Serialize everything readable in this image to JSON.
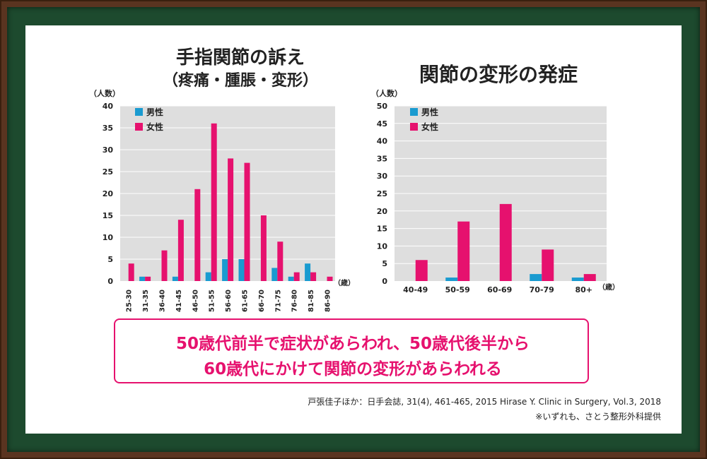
{
  "titles": {
    "left_line1": "手指関節の訴え",
    "left_line2": "（疼痛・腫脹・変形）",
    "right": "関節の変形の発症"
  },
  "colors": {
    "male": "#1a9bd0",
    "female": "#e6116e",
    "plot_bg": "#dedede",
    "grid": "#ffffff"
  },
  "chart_data": [
    {
      "type": "bar",
      "title": "手指関節の訴え（疼痛・腫脹・変形）",
      "ylabel": "（人数）",
      "xunit": "（歳）",
      "ylim": [
        0,
        40
      ],
      "yticks": [
        0,
        5,
        10,
        15,
        20,
        25,
        30,
        35,
        40
      ],
      "categories": [
        "25-30",
        "31-35",
        "36-40",
        "41-45",
        "46-50",
        "51-55",
        "56-60",
        "61-65",
        "66-70",
        "71-75",
        "76-80",
        "81-85",
        "86-90"
      ],
      "series": [
        {
          "name": "男性",
          "values": [
            0,
            1,
            0,
            1,
            0,
            2,
            5,
            5,
            0,
            3,
            1,
            4,
            0
          ]
        },
        {
          "name": "女性",
          "values": [
            4,
            1,
            7,
            14,
            21,
            36,
            28,
            27,
            15,
            9,
            2,
            2,
            1
          ]
        }
      ],
      "legend": "top-left",
      "grid": true
    },
    {
      "type": "bar",
      "title": "関節の変形の発症",
      "ylabel": "（人数）",
      "xunit": "（歳）",
      "ylim": [
        0,
        50
      ],
      "yticks": [
        0,
        5,
        10,
        15,
        20,
        25,
        30,
        35,
        40,
        45,
        50
      ],
      "categories": [
        "40-49",
        "50-59",
        "60-69",
        "70-79",
        "80+"
      ],
      "series": [
        {
          "name": "男性",
          "values": [
            0,
            1,
            0,
            2,
            1
          ]
        },
        {
          "name": "女性",
          "values": [
            6,
            17,
            22,
            9,
            2
          ]
        }
      ],
      "legend": "top-left",
      "grid": true
    }
  ],
  "callout": {
    "line1": "50歳代前半で症状があらわれ、50歳代後半から",
    "line2": "60歳代にかけて関節の変形があらわれる"
  },
  "source": "戸張佳子ほか：日手会誌, 31(4), 461-465, 2015 Hirase Y. Clinic in Surgery, Vol.3, 2018",
  "note": "※いずれも、さとう整形外科提供"
}
